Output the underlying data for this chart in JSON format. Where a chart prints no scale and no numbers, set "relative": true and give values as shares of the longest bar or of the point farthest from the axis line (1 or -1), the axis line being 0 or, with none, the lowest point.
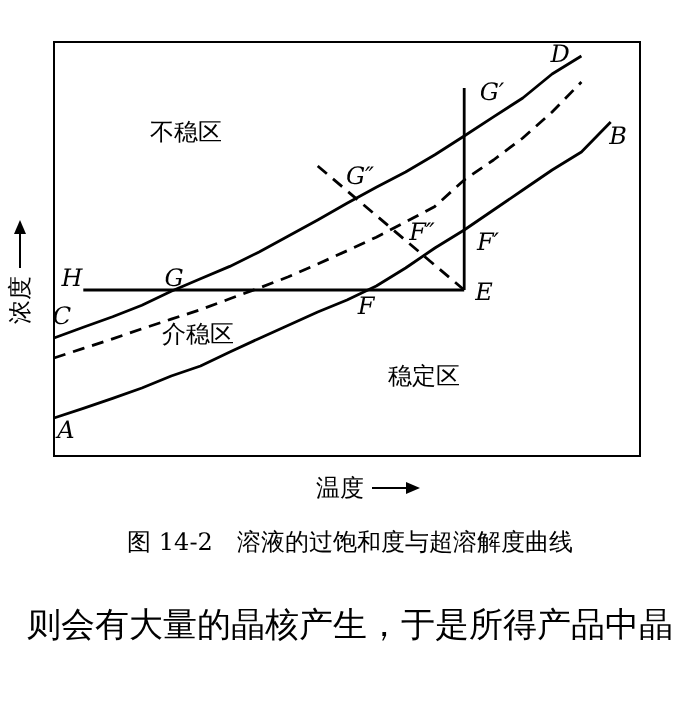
{
  "chart_data": {
    "type": "line",
    "title": "图 14-2　溶液的过饱和度与超溶解度曲线",
    "xlabel": "温度",
    "ylabel": "浓度",
    "relative": true,
    "tick_labels": false,
    "grid": false,
    "marker": "none",
    "categories": [
      null,
      null,
      null,
      null,
      null,
      null,
      null,
      null,
      null,
      null,
      null,
      null,
      null,
      null,
      null,
      null,
      null,
      null,
      null,
      null,
      null
    ],
    "series": [
      {
        "color": "#000000",
        "line_style": "solid",
        "values": [
          0.295,
          0.322,
          0.348,
          0.377,
          0.412,
          0.443,
          0.474,
          0.51,
          0.55,
          0.59,
          0.632,
          0.672,
          0.71,
          0.753,
          0.8,
          0.848,
          0.895,
          0.955,
          1.0,
          null,
          null
        ]
      },
      {
        "color": "#000000",
        "line_style": "dashed",
        "values": [
          0.245,
          0.269,
          0.293,
          0.318,
          0.342,
          0.366,
          0.393,
          0.42,
          0.448,
          0.48,
          0.513,
          0.547,
          0.585,
          0.624,
          0.69,
          0.74,
          0.795,
          0.86,
          0.935,
          null,
          null
        ]
      },
      {
        "color": "#000000",
        "line_style": "solid",
        "values": [
          0.095,
          0.119,
          0.144,
          0.17,
          0.2,
          0.225,
          0.26,
          0.294,
          0.327,
          0.36,
          0.39,
          0.425,
          0.47,
          0.52,
          0.565,
          0.615,
          0.665,
          0.715,
          0.76,
          0.835,
          null
        ]
      },
      {
        "color": "#000000",
        "line_style": "solid",
        "values": [
          null,
          0.415,
          0.415,
          0.415,
          0.415,
          0.415,
          0.415,
          0.415,
          0.415,
          0.415,
          0.415,
          0.415,
          0.415,
          0.415,
          0.415,
          null,
          null,
          null,
          null,
          null,
          null
        ]
      },
      {
        "color": "#000000",
        "line_style": "dashed",
        "values": [
          null,
          null,
          null,
          null,
          null,
          null,
          null,
          null,
          null,
          0.725,
          0.663,
          0.601,
          0.539,
          0.477,
          0.415,
          null,
          null,
          null,
          null,
          null,
          null
        ]
      }
    ],
    "annotations": [
      "A",
      "B",
      "C",
      "D",
      "E",
      "F",
      "G",
      "H",
      "G′",
      "G″",
      "F′",
      "F″",
      "不稳区",
      "介稳区",
      "稳定区",
      "则会有大量的晶核产生，于是所得产品中晶"
    ]
  }
}
